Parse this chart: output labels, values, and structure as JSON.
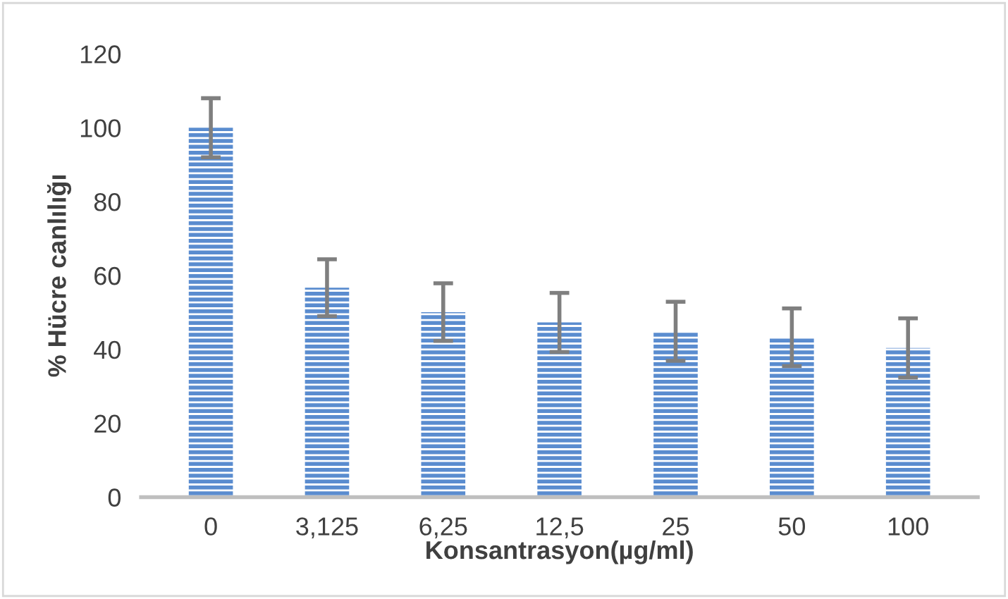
{
  "chart_data": {
    "type": "bar",
    "xlabel": "Konsantrasyon(µg/ml)",
    "ylabel": "% Hücre canlılığı",
    "categories": [
      "0",
      "3,125",
      "6,25",
      "12,5",
      "25",
      "50",
      "100"
    ],
    "values": [
      100,
      56.7,
      50.1,
      47.3,
      44.9,
      43.3,
      40.4
    ],
    "errors": [
      8,
      7.7,
      7.8,
      8,
      8,
      7.8,
      8
    ],
    "color": "#5a8ccf",
    "ylim": [
      0,
      120
    ],
    "yticks": [
      0,
      20,
      40,
      60,
      80,
      100,
      120
    ],
    "grid": false,
    "legend": false
  }
}
